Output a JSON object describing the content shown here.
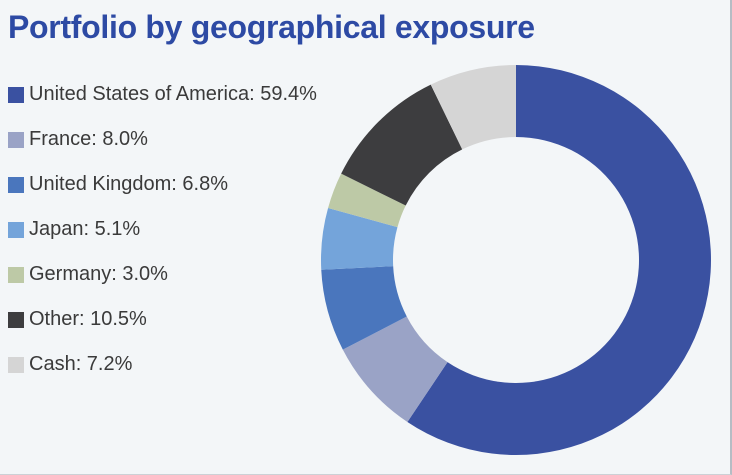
{
  "page": {
    "background": "#f3f6f8",
    "right_border_color": "#b6bcc4"
  },
  "header": {
    "title": "Portfolio by geographical exposure",
    "title_color": "#2d4aa4"
  },
  "chart_data": {
    "type": "pie",
    "donut": true,
    "title": "Portfolio by geographical exposure",
    "start_angle": "top",
    "direction": "clockwise",
    "legend_position": "left",
    "hole_color": "#f3f6f8",
    "segments": [
      {
        "label": "United States of America",
        "value": 59.4,
        "display": "United States of America: 59.4%",
        "color": "#3a51a1"
      },
      {
        "label": "France",
        "value": 8.0,
        "display": "France: 8.0%",
        "color": "#9aa3c6"
      },
      {
        "label": "United Kingdom",
        "value": 6.8,
        "display": "United Kingdom: 6.8%",
        "color": "#4a76bd"
      },
      {
        "label": "Japan",
        "value": 5.1,
        "display": "Japan: 5.1%",
        "color": "#74a4da"
      },
      {
        "label": "Germany",
        "value": 3.0,
        "display": "Germany: 3.0%",
        "color": "#bdc9a6"
      },
      {
        "label": "Other",
        "value": 10.5,
        "display": "Other: 10.5%",
        "color": "#3d3d3f"
      },
      {
        "label": "Cash",
        "value": 7.2,
        "display": "Cash: 7.2%",
        "color": "#d5d5d5"
      }
    ]
  }
}
